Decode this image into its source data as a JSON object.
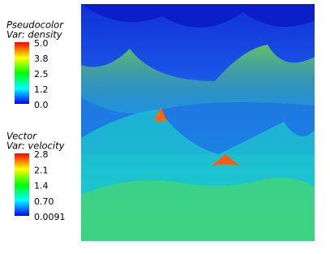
{
  "legends": [
    {
      "title": "Pseudocolor",
      "variable": "Var: density",
      "ticks": [
        "5.0",
        "3.8",
        "2.5",
        "1.2",
        "0.0"
      ]
    },
    {
      "title": "Vector",
      "variable": "Var: velocity",
      "ticks": [
        "2.8",
        "2.1",
        "1.4",
        "0.70",
        "0.0091"
      ]
    }
  ]
}
